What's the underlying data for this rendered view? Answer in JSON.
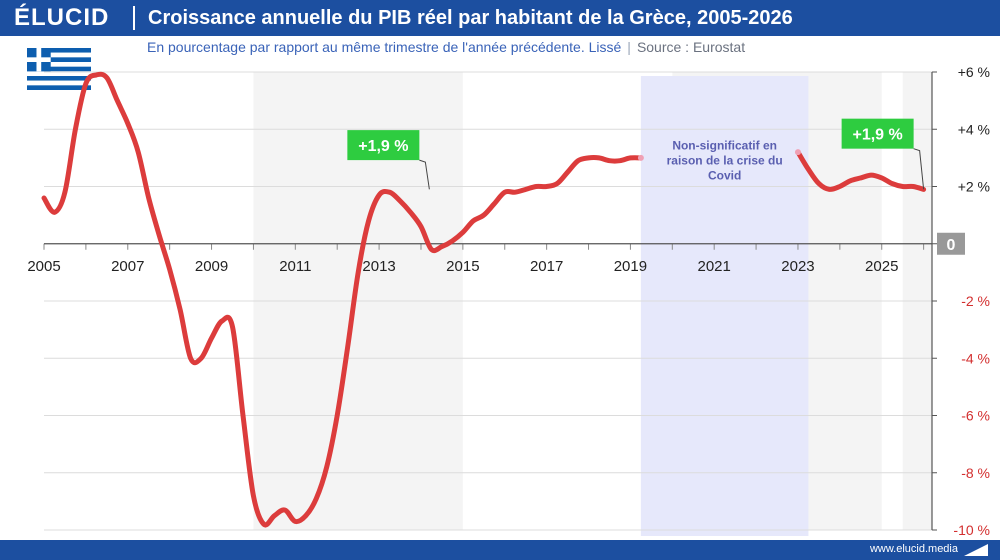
{
  "brand": {
    "name": "ÉLUCID"
  },
  "header": {
    "title": "Croissance annuelle du PIB réel par habitant de la Grèce, 2005-2026",
    "subtitle": "En pourcentage par rapport au même trimestre de l'année précédente. Lissé",
    "source": "Source : Eurostat"
  },
  "flag": {
    "icon": "greece-flag-icon",
    "blue": "#0d5eaf",
    "white": "#ffffff"
  },
  "footer": {
    "site": "www.elucid.media"
  },
  "colors": {
    "line": "#dc3c3c",
    "faded_line": "#f0a0b4",
    "label_green": "#2ecc40",
    "covid_band": "#e6e8fb",
    "shade": "#f4f4f4",
    "negative_tick": "#d32f2f",
    "zero_badge": "#999999",
    "header": "#1c4fa0"
  },
  "chart_data": {
    "type": "line",
    "x_ticks": [
      "2005",
      "2007",
      "2009",
      "2011",
      "2013",
      "2015",
      "2017",
      "2019",
      "2021",
      "2023",
      "2025"
    ],
    "y_ticks": [
      "+6 %",
      "+4 %",
      "+2 %",
      "0",
      "-2 %",
      "-4 %",
      "-6 %",
      "-8 %",
      "-10 %"
    ],
    "xlim": [
      2005,
      2026.2
    ],
    "ylim": [
      -10,
      6
    ],
    "grid": true,
    "y_axis_side": "right",
    "shaded_year_bands": [
      [
        2010,
        2015
      ],
      [
        2020,
        2025
      ],
      [
        2025.5,
        2026.2
      ]
    ],
    "series": [
      {
        "segment": "2005-2019",
        "x": [
          2005.0,
          2005.25,
          2005.5,
          2005.75,
          2006.0,
          2006.25,
          2006.5,
          2006.75,
          2007.0,
          2007.25,
          2007.5,
          2007.75,
          2008.0,
          2008.25,
          2008.5,
          2008.75,
          2009.0,
          2009.25,
          2009.5,
          2009.75,
          2010.0,
          2010.25,
          2010.5,
          2010.75,
          2011.0,
          2011.25,
          2011.5,
          2011.75,
          2012.0,
          2012.25,
          2012.5,
          2012.75,
          2013.0,
          2013.25,
          2013.5,
          2013.75,
          2014.0,
          2014.25,
          2014.5,
          2014.75,
          2015.0,
          2015.25,
          2015.5,
          2015.75,
          2016.0,
          2016.25,
          2016.5,
          2016.75,
          2017.0,
          2017.25,
          2017.5,
          2017.75,
          2018.0,
          2018.25,
          2018.5,
          2018.75,
          2019.0,
          2019.25
        ],
        "y": [
          1.6,
          1.1,
          1.8,
          4.0,
          5.6,
          5.9,
          5.8,
          5.0,
          4.2,
          3.2,
          1.6,
          0.3,
          -0.9,
          -2.3,
          -4.0,
          -4.0,
          -3.3,
          -2.7,
          -2.9,
          -6.0,
          -8.8,
          -9.8,
          -9.5,
          -9.3,
          -9.7,
          -9.5,
          -8.9,
          -7.8,
          -6.0,
          -3.6,
          -1.0,
          0.8,
          1.7,
          1.8,
          1.5,
          1.1,
          0.6,
          -0.2,
          -0.1,
          0.1,
          0.4,
          0.8,
          1.0,
          1.4,
          1.8,
          1.8,
          1.9,
          2.0,
          2.0,
          2.1,
          2.5,
          2.9,
          3.0,
          3.0,
          2.9,
          2.9,
          3.0,
          3.0
        ]
      },
      {
        "segment": "2023-2026",
        "x": [
          2023.0,
          2023.25,
          2023.5,
          2023.75,
          2024.0,
          2024.25,
          2024.5,
          2024.75,
          2025.0,
          2025.25,
          2025.5,
          2025.75,
          2026.0
        ],
        "y": [
          3.2,
          2.6,
          2.1,
          1.9,
          2.0,
          2.2,
          2.3,
          2.4,
          2.3,
          2.1,
          2.0,
          2.0,
          1.9
        ]
      }
    ],
    "highlight_regions": [
      {
        "x_start": 2019.25,
        "x_end": 2023.25,
        "label": [
          "Non-significatif en",
          "raison de la crise du",
          "Covid"
        ]
      }
    ],
    "annotations": [
      {
        "text": "+1,9 %",
        "x": 2014.2,
        "y": 1.9
      },
      {
        "text": "+1,9 %",
        "x": 2026.0,
        "y": 1.9
      }
    ]
  }
}
